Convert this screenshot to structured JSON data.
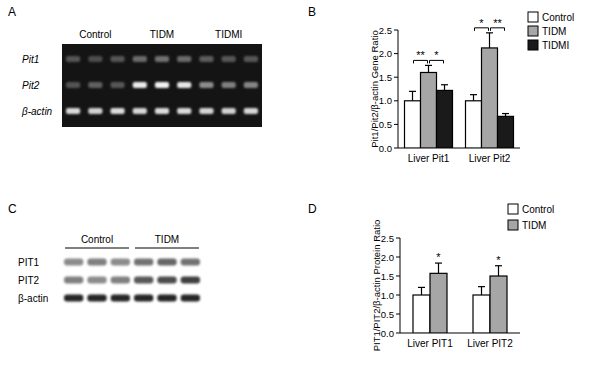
{
  "figure": {
    "panel_a": {
      "label": "A",
      "groups": [
        "Control",
        "TIDM",
        "TIDMI"
      ],
      "rows": [
        "Pit1",
        "Pit2",
        "β-actin"
      ]
    },
    "panel_c": {
      "label": "C",
      "groups": [
        "Control",
        "TIDM"
      ],
      "rows": [
        "PIT1",
        "PIT2",
        "β-actin"
      ]
    }
  },
  "chart_data": [
    {
      "type": "bar",
      "title": "B",
      "ylabel": "Pit1/Pit2/β-actin Gene Ratio",
      "categories": [
        "Liver Pit1",
        "Liver Pit2"
      ],
      "series": [
        {
          "name": "Control",
          "color": "#ffffff",
          "values": [
            1.0,
            1.0
          ],
          "errors": [
            0.2,
            0.13
          ]
        },
        {
          "name": "TIDM",
          "color": "#a6a6a6",
          "values": [
            1.6,
            2.12
          ],
          "errors": [
            0.15,
            0.32
          ]
        },
        {
          "name": "TIDMI",
          "color": "#1a1a1a",
          "values": [
            1.22,
            0.67
          ],
          "errors": [
            0.12,
            0.06
          ]
        }
      ],
      "ylim": [
        0,
        2.5
      ],
      "yticks": [
        {
          "value": 0,
          "label": "0.0"
        },
        0.5,
        {
          "value": 1,
          "label": "1.0"
        },
        1.5,
        {
          "value": 2,
          "label": "2.0"
        },
        2.5
      ],
      "legend": "upper right",
      "annotations": [
        {
          "text": "**",
          "category": "Liver Pit1",
          "between": [
            "Control",
            "TIDM"
          ]
        },
        {
          "text": "*",
          "category": "Liver Pit1",
          "between": [
            "TIDM",
            "TIDMI"
          ]
        },
        {
          "text": "*",
          "category": "Liver Pit2",
          "between": [
            "Control",
            "TIDM"
          ]
        },
        {
          "text": "**",
          "category": "Liver Pit2",
          "between": [
            "TIDM",
            "TIDMI"
          ]
        }
      ]
    },
    {
      "type": "bar",
      "title": "D",
      "ylabel": "PIT1/PIT2/β-actin Protein Ratio",
      "categories": [
        "Liver PIT1",
        "Liver PIT2"
      ],
      "series": [
        {
          "name": "Control",
          "color": "#ffffff",
          "values": [
            1.0,
            1.0
          ],
          "errors": [
            0.2,
            0.22
          ]
        },
        {
          "name": "TIDM",
          "color": "#a6a6a6",
          "values": [
            1.57,
            1.5
          ],
          "errors": [
            0.27,
            0.27
          ]
        }
      ],
      "ylim": [
        0,
        2.5
      ],
      "yticks": [
        {
          "value": 0,
          "label": "0.0"
        },
        0.5,
        {
          "value": 1,
          "label": "1.0"
        },
        1.5,
        {
          "value": 2,
          "label": "2.0"
        },
        2.5
      ],
      "legend": "upper right",
      "annotations": [
        {
          "text": "*",
          "category": "Liver PIT1",
          "series": "TIDM"
        },
        {
          "text": "*",
          "category": "Liver PIT2",
          "series": "TIDM"
        }
      ]
    }
  ]
}
